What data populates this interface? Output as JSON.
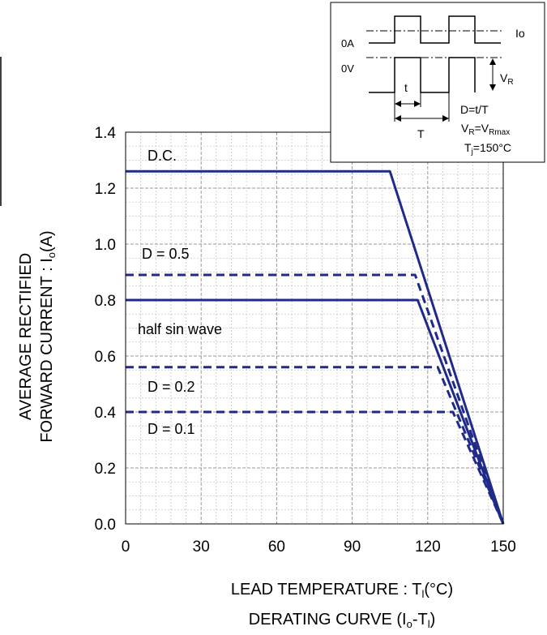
{
  "chart_data": {
    "type": "line",
    "xlabel_main": "LEAD TEMPERATURE : T",
    "xlabel_sub": "l",
    "xlabel_unit": "(°C)",
    "title_main": "DERATING CURVE (I",
    "title_sub1": "o",
    "title_mid": "-T",
    "title_sub2": "l",
    "title_end": ")",
    "ylabel_line1": "AVERAGE RECTIFIED",
    "ylabel_line2_main": "FORWARD CURRENT : I",
    "ylabel_line2_sub": "o",
    "ylabel_line2_end": "(A)",
    "xlim": [
      0,
      150
    ],
    "ylim": [
      0,
      1.4
    ],
    "x_ticks": [
      "0",
      "30",
      "60",
      "90",
      "120",
      "150"
    ],
    "y_ticks": [
      "0.0",
      "0.2",
      "0.4",
      "0.6",
      "0.8",
      "1.0",
      "1.2",
      "1.4"
    ],
    "grid": true,
    "line_color": "#1f2a8a",
    "series": [
      {
        "name": "D.C.",
        "style": "solid",
        "x": [
          0,
          105,
          150
        ],
        "y": [
          1.26,
          1.26,
          0
        ]
      },
      {
        "name": "D = 0.5",
        "style": "dashed",
        "x": [
          0,
          115,
          150
        ],
        "y": [
          0.89,
          0.89,
          0
        ]
      },
      {
        "name": "half sin wave",
        "style": "solid",
        "x": [
          0,
          116,
          150
        ],
        "y": [
          0.8,
          0.8,
          0
        ]
      },
      {
        "name": "D = 0.2",
        "style": "dashed",
        "x": [
          0,
          124,
          150
        ],
        "y": [
          0.56,
          0.56,
          0
        ]
      },
      {
        "name": "D = 0.1",
        "style": "dashed",
        "x": [
          0,
          130,
          150
        ],
        "y": [
          0.4,
          0.4,
          0
        ]
      }
    ],
    "annotations": {
      "dc": "D.C.",
      "d05": "D = 0.5",
      "half": "half sin wave",
      "d02": "D = 0.2",
      "d01": "D = 0.1"
    },
    "inset": {
      "label_0a": "0A",
      "label_0v": "0V",
      "label_io": "Io",
      "label_vr_main": "V",
      "label_vr_sub": "R",
      "label_t_small": "t",
      "label_t_big": "T",
      "formula_d": "D=t/T",
      "formula_vr_main": "V",
      "formula_vr_sub": "R",
      "formula_vr_eq": "=V",
      "formula_vr_sub2": "Rmax",
      "formula_tj_main": "T",
      "formula_tj_sub": "j",
      "formula_tj_eq": "=150°C"
    }
  }
}
